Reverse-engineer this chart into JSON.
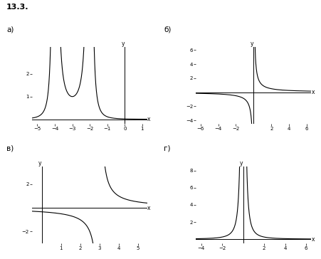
{
  "title": "13.3.",
  "subplot_labels": [
    "а)",
    "б)",
    "в)",
    "г)"
  ],
  "background_color": "#ffffff",
  "line_color": "#000000",
  "axes_color": "#000000",
  "subplots": [
    {
      "label": "а)",
      "func": "1/((x+2)**2*(x+4)**2)",
      "xlim": [
        -5.3,
        1.3
      ],
      "ylim": [
        -0.2,
        3.2
      ],
      "xticks": [
        -5,
        -4,
        -3,
        -2,
        -1,
        0,
        1
      ],
      "yticks": [
        1,
        2
      ],
      "asymptotes": [
        -4,
        -2
      ],
      "xlabel": "x",
      "ylabel": "y"
    },
    {
      "label": "б)",
      "func": "1/x",
      "xlim": [
        -6.5,
        6.5
      ],
      "ylim": [
        -4.5,
        6.5
      ],
      "xticks": [
        -6,
        -4,
        -2,
        2,
        4,
        6
      ],
      "yticks": [
        -4,
        -2,
        2,
        4,
        6
      ],
      "asymptotes": [
        0
      ],
      "xlabel": "x",
      "ylabel": "y"
    },
    {
      "label": "в)",
      "func": "1/(x-3)",
      "xlim": [
        -0.5,
        5.5
      ],
      "ylim": [
        -3.0,
        3.5
      ],
      "xticks": [
        1,
        2,
        3,
        4,
        5
      ],
      "yticks": [
        -2,
        2
      ],
      "asymptotes": [
        3
      ],
      "xlabel": "x",
      "ylabel": "y"
    },
    {
      "label": "г)",
      "func": "1/x**2",
      "xlim": [
        -4.5,
        6.5
      ],
      "ylim": [
        -0.5,
        8.5
      ],
      "xticks": [
        -4,
        -2,
        2,
        4,
        6
      ],
      "yticks": [
        2,
        4,
        6,
        8
      ],
      "asymptotes": [
        0
      ],
      "xlabel": "x",
      "ylabel": "y"
    }
  ]
}
